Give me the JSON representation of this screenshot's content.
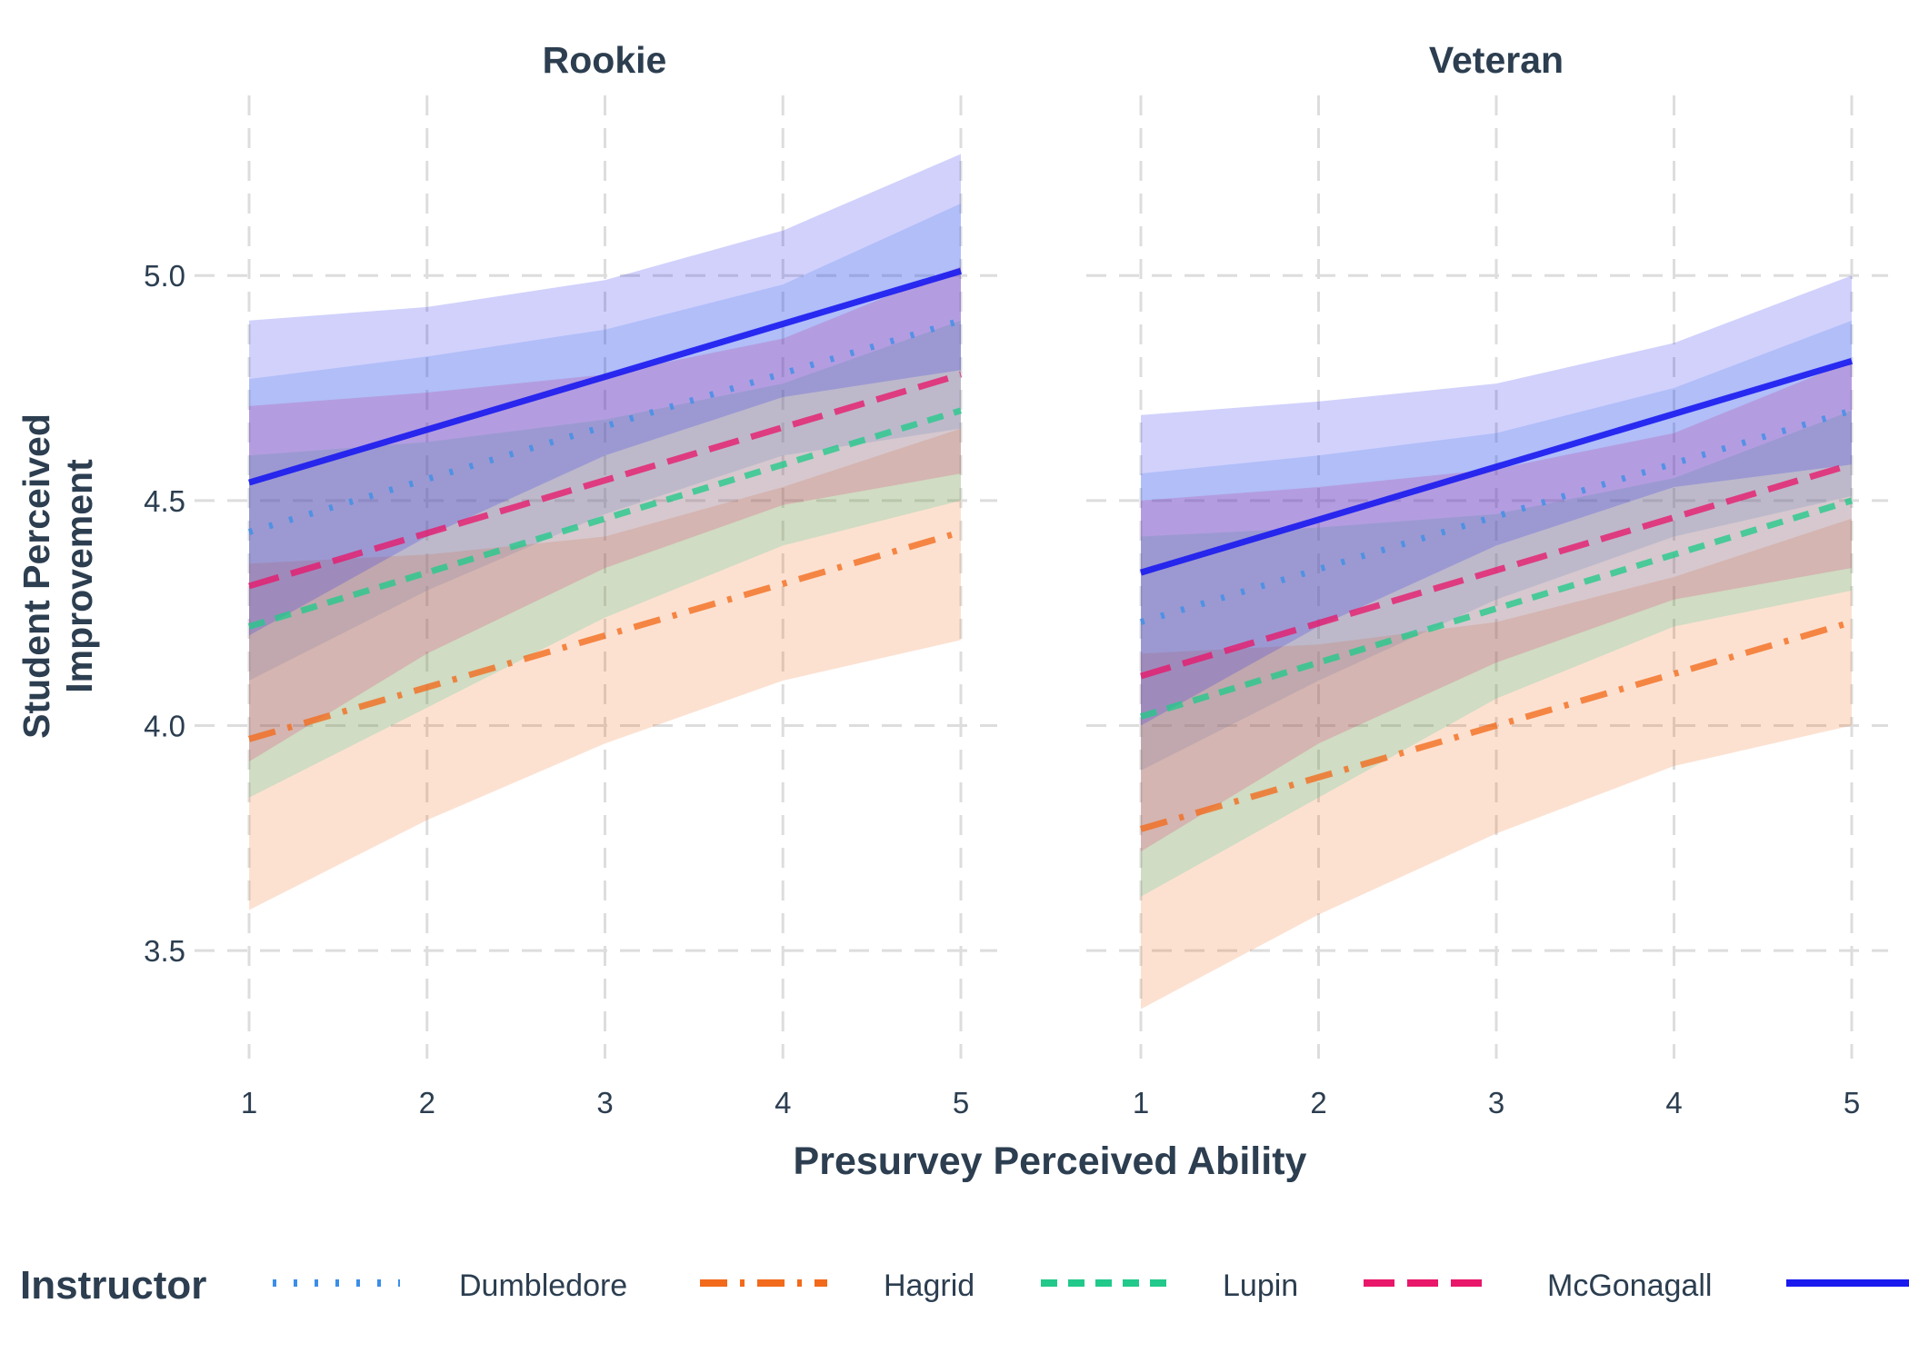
{
  "chart_data": {
    "type": "line",
    "panels": [
      "Rookie",
      "Veteran"
    ],
    "xlabel": "Presurvey Perceived Ability",
    "ylabel": [
      "Student Perceived",
      "Improvement"
    ],
    "xlim": [
      1,
      5
    ],
    "xticks": [
      "1",
      "2",
      "3",
      "4",
      "5"
    ],
    "ylim": [
      3.27,
      5.37
    ],
    "yticks": [
      "3.5",
      "4.0",
      "4.5",
      "5.0"
    ],
    "grid": true,
    "legend_position": "bottom",
    "legend_title": "Instructor",
    "x": [
      1,
      2,
      3,
      4,
      5
    ],
    "series": [
      {
        "name": "Dumbledore",
        "color": "#3b8ee8",
        "dash": "dotted",
        "Rookie": {
          "fit": [
            4.43,
            4.55,
            4.66,
            4.78,
            4.9
          ],
          "lower": [
            4.1,
            4.3,
            4.47,
            4.6,
            4.66
          ],
          "upper": [
            4.77,
            4.82,
            4.88,
            4.98,
            5.16
          ]
        },
        "Veteran": {
          "fit": [
            4.23,
            4.35,
            4.46,
            4.58,
            4.7
          ],
          "lower": [
            3.9,
            4.1,
            4.28,
            4.42,
            4.51
          ],
          "upper": [
            4.56,
            4.6,
            4.65,
            4.75,
            4.9
          ]
        }
      },
      {
        "name": "Hagrid",
        "color": "#f26a1b",
        "dash": "dotdash",
        "Rookie": {
          "fit": [
            3.97,
            4.08,
            4.2,
            4.31,
            4.43
          ],
          "lower": [
            3.59,
            3.79,
            3.96,
            4.1,
            4.19
          ],
          "upper": [
            4.36,
            4.38,
            4.42,
            4.53,
            4.66
          ]
        },
        "Veteran": {
          "fit": [
            3.77,
            3.88,
            4.0,
            4.11,
            4.23
          ],
          "lower": [
            3.37,
            3.58,
            3.76,
            3.91,
            4.0
          ],
          "upper": [
            4.16,
            4.18,
            4.23,
            4.33,
            4.46
          ]
        }
      },
      {
        "name": "Lupin",
        "color": "#22c98a",
        "dash": "dashed",
        "Rookie": {
          "fit": [
            4.22,
            4.34,
            4.46,
            4.58,
            4.7
          ],
          "lower": [
            3.84,
            4.04,
            4.24,
            4.4,
            4.5
          ],
          "upper": [
            4.6,
            4.63,
            4.68,
            4.76,
            4.9
          ]
        },
        "Veteran": {
          "fit": [
            4.02,
            4.14,
            4.26,
            4.38,
            4.5
          ],
          "lower": [
            3.62,
            3.84,
            4.06,
            4.22,
            4.3
          ],
          "upper": [
            4.42,
            4.44,
            4.47,
            4.55,
            4.7
          ]
        }
      },
      {
        "name": "McGonagall",
        "color": "#e8176a",
        "dash": "longdash",
        "Rookie": {
          "fit": [
            4.31,
            4.43,
            4.55,
            4.66,
            4.78
          ],
          "lower": [
            3.92,
            4.16,
            4.35,
            4.49,
            4.56
          ],
          "upper": [
            4.71,
            4.74,
            4.78,
            4.86,
            5.02
          ]
        },
        "Veteran": {
          "fit": [
            4.11,
            4.23,
            4.35,
            4.46,
            4.58
          ],
          "lower": [
            3.72,
            3.96,
            4.14,
            4.28,
            4.35
          ],
          "upper": [
            4.5,
            4.53,
            4.57,
            4.65,
            4.81
          ]
        }
      },
      {
        "name": "",
        "color": "#1a1aef",
        "dash": "solid",
        "Rookie": {
          "fit": [
            4.54,
            4.66,
            4.78,
            4.89,
            5.01
          ],
          "lower": [
            4.2,
            4.42,
            4.6,
            4.73,
            4.79
          ],
          "upper": [
            4.9,
            4.93,
            4.99,
            5.1,
            5.27
          ]
        },
        "Veteran": {
          "fit": [
            4.34,
            4.46,
            4.58,
            4.69,
            4.81
          ],
          "lower": [
            4.0,
            4.22,
            4.4,
            4.53,
            4.58
          ],
          "upper": [
            4.69,
            4.72,
            4.76,
            4.85,
            5.0
          ]
        }
      }
    ]
  }
}
